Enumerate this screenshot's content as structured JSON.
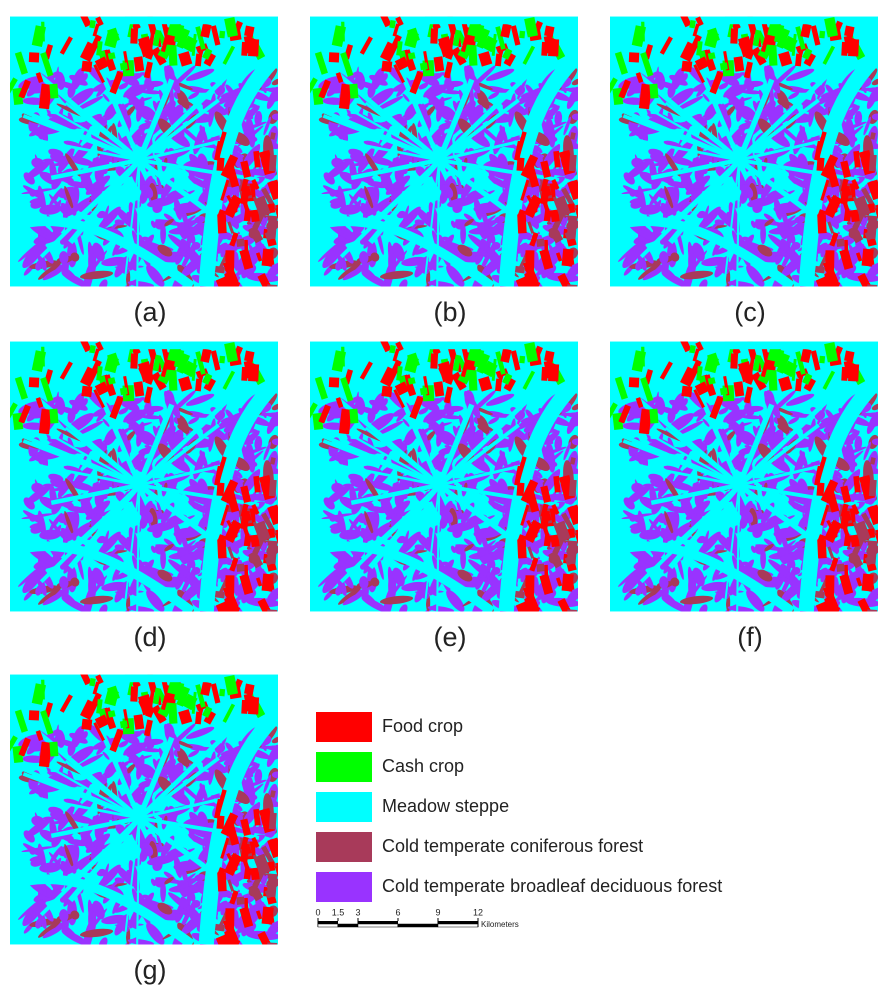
{
  "panels": [
    "(a)",
    "(b)",
    "(c)",
    "(d)",
    "(e)",
    "(f)",
    "(g)"
  ],
  "legend": [
    {
      "label": "Food crop",
      "color": "#ff0000"
    },
    {
      "label": "Cash crop",
      "color": "#00ff00"
    },
    {
      "label": "Meadow steppe",
      "color": "#00ffff"
    },
    {
      "label": "Cold temperate coniferous forest",
      "color": "#a83a5a"
    },
    {
      "label": "Cold temperate broadleaf deciduous forest",
      "color": "#9933ff"
    }
  ],
  "scale_bar": {
    "ticks": [
      0,
      1.5,
      3,
      6,
      9,
      12
    ],
    "unit": "Kilometers"
  }
}
